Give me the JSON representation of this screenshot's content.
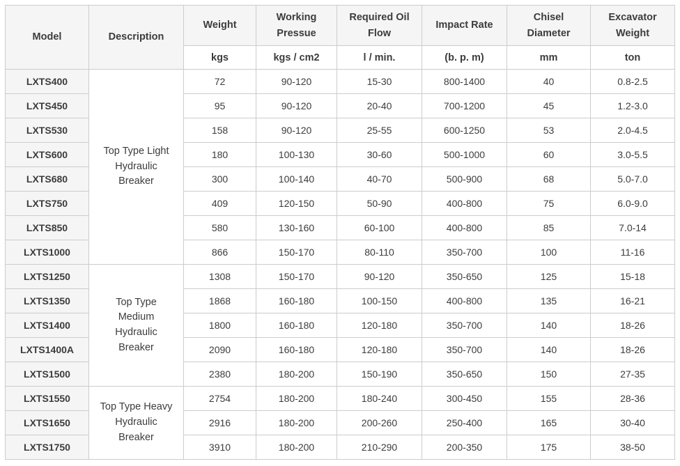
{
  "colors": {
    "header_bg": "#f5f5f5",
    "model_cell_bg": "#f5f5f5",
    "border": "#cccccc",
    "text": "#3c3c3c"
  },
  "table": {
    "header": {
      "model": "Model",
      "description": "Description",
      "cols": [
        {
          "label": "Weight",
          "unit": "kgs"
        },
        {
          "label": "Working Pressue",
          "unit": "kgs / cm2"
        },
        {
          "label": "Required Oil Flow",
          "unit": "l / min."
        },
        {
          "label": "Impact Rate",
          "unit": "(b. p. m)"
        },
        {
          "label": "Chisel Diameter",
          "unit": "mm"
        },
        {
          "label": "Excavator Weight",
          "unit": "ton"
        }
      ]
    },
    "groups": [
      {
        "description": "Top Type Light Hydraulic Breaker",
        "rows": [
          {
            "model": "LXTS400",
            "weight": "72",
            "working_pressure": "90-120",
            "oil_flow": "15-30",
            "impact_rate": "800-1400",
            "chisel_diameter": "40",
            "excavator_weight": "0.8-2.5"
          },
          {
            "model": "LXTS450",
            "weight": "95",
            "working_pressure": "90-120",
            "oil_flow": "20-40",
            "impact_rate": "700-1200",
            "chisel_diameter": "45",
            "excavator_weight": "1.2-3.0"
          },
          {
            "model": "LXTS530",
            "weight": "158",
            "working_pressure": "90-120",
            "oil_flow": "25-55",
            "impact_rate": "600-1250",
            "chisel_diameter": "53",
            "excavator_weight": "2.0-4.5"
          },
          {
            "model": "LXTS600",
            "weight": "180",
            "working_pressure": "100-130",
            "oil_flow": "30-60",
            "impact_rate": "500-1000",
            "chisel_diameter": "60",
            "excavator_weight": "3.0-5.5"
          },
          {
            "model": "LXTS680",
            "weight": "300",
            "working_pressure": "100-140",
            "oil_flow": "40-70",
            "impact_rate": "500-900",
            "chisel_diameter": "68",
            "excavator_weight": "5.0-7.0"
          },
          {
            "model": "LXTS750",
            "weight": "409",
            "working_pressure": "120-150",
            "oil_flow": "50-90",
            "impact_rate": "400-800",
            "chisel_diameter": "75",
            "excavator_weight": "6.0-9.0"
          },
          {
            "model": "LXTS850",
            "weight": "580",
            "working_pressure": "130-160",
            "oil_flow": "60-100",
            "impact_rate": "400-800",
            "chisel_diameter": "85",
            "excavator_weight": "7.0-14"
          },
          {
            "model": "LXTS1000",
            "weight": "866",
            "working_pressure": "150-170",
            "oil_flow": "80-110",
            "impact_rate": "350-700",
            "chisel_diameter": "100",
            "excavator_weight": "11-16"
          }
        ]
      },
      {
        "description": "Top Type Medium Hydraulic Breaker",
        "rows": [
          {
            "model": "LXTS1250",
            "weight": "1308",
            "working_pressure": "150-170",
            "oil_flow": "90-120",
            "impact_rate": "350-650",
            "chisel_diameter": "125",
            "excavator_weight": "15-18"
          },
          {
            "model": "LXTS1350",
            "weight": "1868",
            "working_pressure": "160-180",
            "oil_flow": "100-150",
            "impact_rate": "400-800",
            "chisel_diameter": "135",
            "excavator_weight": "16-21"
          },
          {
            "model": "LXTS1400",
            "weight": "1800",
            "working_pressure": "160-180",
            "oil_flow": "120-180",
            "impact_rate": "350-700",
            "chisel_diameter": "140",
            "excavator_weight": "18-26"
          },
          {
            "model": "LXTS1400A",
            "weight": "2090",
            "working_pressure": "160-180",
            "oil_flow": "120-180",
            "impact_rate": "350-700",
            "chisel_diameter": "140",
            "excavator_weight": "18-26"
          },
          {
            "model": "LXTS1500",
            "weight": "2380",
            "working_pressure": "180-200",
            "oil_flow": "150-190",
            "impact_rate": "350-650",
            "chisel_diameter": "150",
            "excavator_weight": "27-35"
          }
        ]
      },
      {
        "description": "Top Type Heavy Hydraulic Breaker",
        "rows": [
          {
            "model": "LXTS1550",
            "weight": "2754",
            "working_pressure": "180-200",
            "oil_flow": "180-240",
            "impact_rate": "300-450",
            "chisel_diameter": "155",
            "excavator_weight": "28-36"
          },
          {
            "model": "LXTS1650",
            "weight": "2916",
            "working_pressure": "180-200",
            "oil_flow": "200-260",
            "impact_rate": "250-400",
            "chisel_diameter": "165",
            "excavator_weight": "30-40"
          },
          {
            "model": "LXTS1750",
            "weight": "3910",
            "working_pressure": "180-200",
            "oil_flow": "210-290",
            "impact_rate": "200-350",
            "chisel_diameter": "175",
            "excavator_weight": "38-50"
          }
        ]
      }
    ]
  }
}
